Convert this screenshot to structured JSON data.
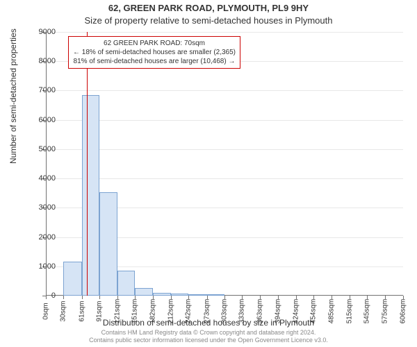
{
  "title_main": "62, GREEN PARK ROAD, PLYMOUTH, PL9 9HY",
  "title_sub": "Size of property relative to semi-detached houses in Plymouth",
  "ylabel": "Number of semi-detached properties",
  "xlabel": "Distribution of semi-detached houses by size in Plymouth",
  "footer_line1": "Contains HM Land Registry data © Crown copyright and database right 2024.",
  "footer_line2": "Contains public sector information licensed under the Open Government Licence v3.0.",
  "chart": {
    "type": "histogram",
    "ylim": [
      0,
      9000
    ],
    "ytick_step": 1000,
    "xlim": [
      0,
      606
    ],
    "x_tick_labels": [
      "0sqm",
      "30sqm",
      "61sqm",
      "91sqm",
      "121sqm",
      "151sqm",
      "182sqm",
      "212sqm",
      "242sqm",
      "273sqm",
      "303sqm",
      "333sqm",
      "363sqm",
      "394sqm",
      "424sqm",
      "454sqm",
      "485sqm",
      "515sqm",
      "545sqm",
      "575sqm",
      "606sqm"
    ],
    "x_tick_positions": [
      0,
      30,
      61,
      91,
      121,
      151,
      182,
      212,
      242,
      273,
      303,
      333,
      363,
      394,
      424,
      454,
      485,
      515,
      545,
      575,
      606
    ],
    "bars": [
      {
        "x_start": 30,
        "x_end": 61,
        "value": 1150
      },
      {
        "x_start": 61,
        "x_end": 91,
        "value": 6850
      },
      {
        "x_start": 91,
        "x_end": 121,
        "value": 3520
      },
      {
        "x_start": 121,
        "x_end": 151,
        "value": 850
      },
      {
        "x_start": 151,
        "x_end": 182,
        "value": 250
      },
      {
        "x_start": 182,
        "x_end": 212,
        "value": 100
      },
      {
        "x_start": 212,
        "x_end": 242,
        "value": 60
      },
      {
        "x_start": 242,
        "x_end": 273,
        "value": 45
      },
      {
        "x_start": 273,
        "x_end": 303,
        "value": 35
      }
    ],
    "bar_fill": "#d6e4f5",
    "bar_border": "#7ca3d1",
    "background_color": "#ffffff",
    "grid_color": "#e8e8e8",
    "axis_color": "#707070",
    "indicator": {
      "x": 70,
      "color": "#cc0000"
    },
    "annotation": {
      "line1": "62 GREEN PARK ROAD: 70sqm",
      "line2": "← 18% of semi-detached houses are smaller (2,365)",
      "line3": "81% of semi-detached houses are larger (10,468) →",
      "border_color": "#cc0000",
      "fontsize": 10
    },
    "title_fontsize": 13,
    "label_fontsize": 12,
    "tick_fontsize": 11
  }
}
